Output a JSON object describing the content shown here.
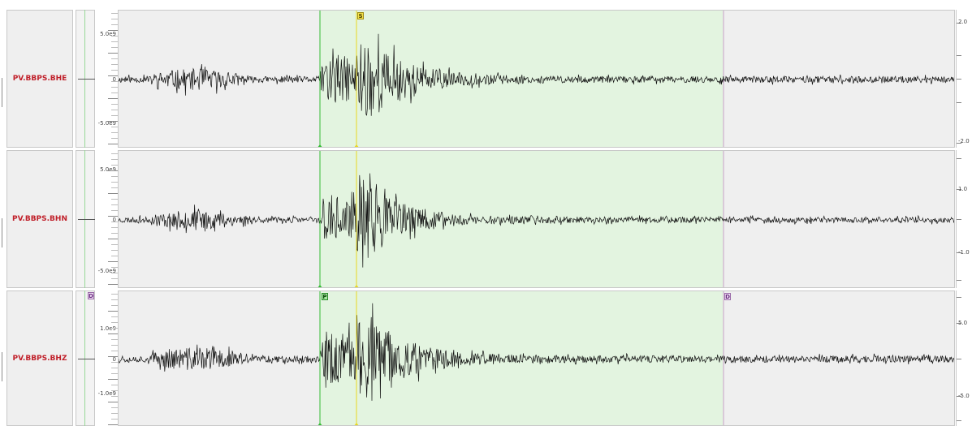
{
  "colors": {
    "panel_bg": "#efefef",
    "window_fill": "#e3f4e0",
    "p_pick": "#33bb33",
    "s_pick": "#e8d820",
    "window_end": "#c9a0c9",
    "label": "#c0202a",
    "trace": "#111111"
  },
  "traces": [
    {
      "channel": "PV.BBPS.BHE",
      "scale_top": "5.0e9",
      "scale_zero": "0",
      "scale_bottom": "-5.0e9",
      "right_top": "2.0",
      "right_bottom": "-2.0",
      "flag_text": "S",
      "flag_icon": "s-pick-flag-icon",
      "seed": 11,
      "amp": 1.0
    },
    {
      "channel": "PV.BBPS.BHN",
      "scale_top": "5.0e9",
      "scale_zero": "0",
      "scale_bottom": "-5.0e9",
      "right_top": "1.0",
      "right_bottom": "-1.0",
      "flag_text": "",
      "flag_icon": "",
      "seed": 23,
      "amp": 0.9
    },
    {
      "channel": "PV.BBPS.BHZ",
      "scale_top": "1.0e9",
      "scale_zero": "0",
      "scale_bottom": "-1.0e9",
      "right_top": "5.0",
      "right_bottom": "-5.0",
      "flag_text": "P",
      "flag_icon": "p-pick-flag-icon",
      "window_marker_left": "D",
      "window_marker_right": "D",
      "seed": 37,
      "amp": 1.1
    }
  ]
}
